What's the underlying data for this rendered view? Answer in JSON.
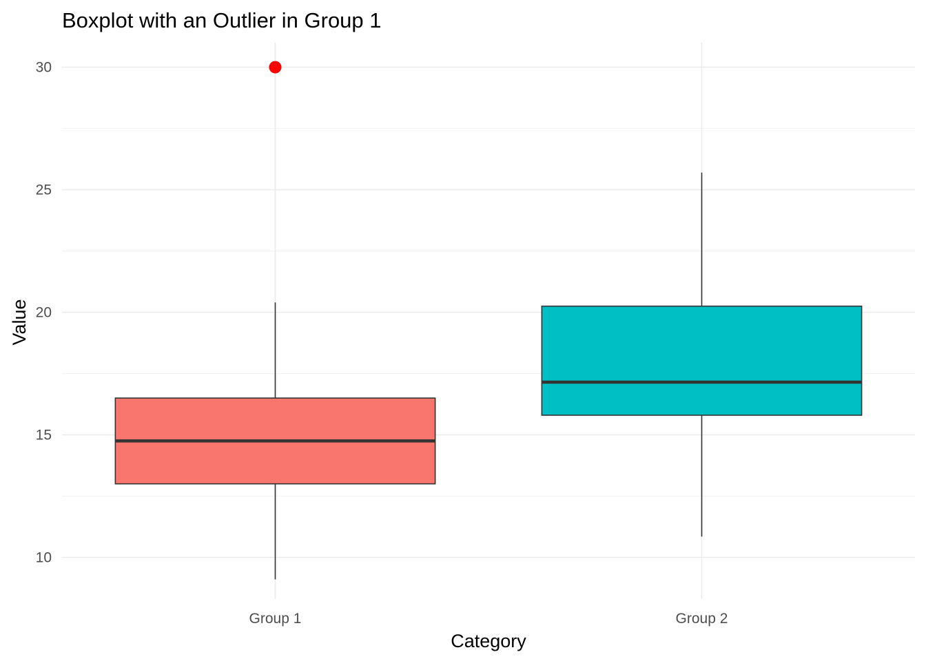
{
  "chart_data": {
    "type": "boxplot",
    "title": "Boxplot with an Outlier in Group 1",
    "xlabel": "Category",
    "ylabel": "Value",
    "ylim": [
      8.3,
      31.0
    ],
    "yticks": [
      10,
      15,
      20,
      25,
      30
    ],
    "grid": true,
    "legend": "none",
    "categories": [
      "Group 1",
      "Group 2"
    ],
    "series": [
      {
        "category": "Group 1",
        "color": "#F8766D",
        "whisker_low": 9.1,
        "q1": 13.0,
        "median": 14.75,
        "q3": 16.5,
        "whisker_high": 20.4,
        "outliers": [
          30.0
        ],
        "outlier_color": "#FF0000"
      },
      {
        "category": "Group 2",
        "color": "#00BFC4",
        "whisker_low": 10.85,
        "q1": 15.8,
        "median": 17.15,
        "q3": 20.25,
        "whisker_high": 25.7,
        "outliers": []
      }
    ]
  }
}
